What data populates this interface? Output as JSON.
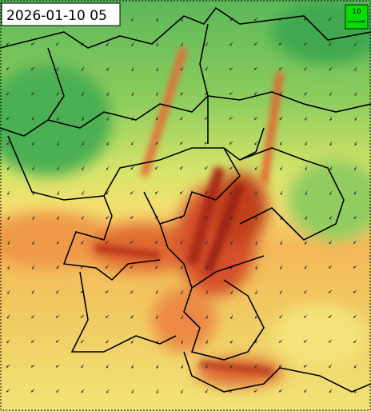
{
  "timestamp": "2026-01-10 05",
  "wind_legend": {
    "label": "10"
  }
}
